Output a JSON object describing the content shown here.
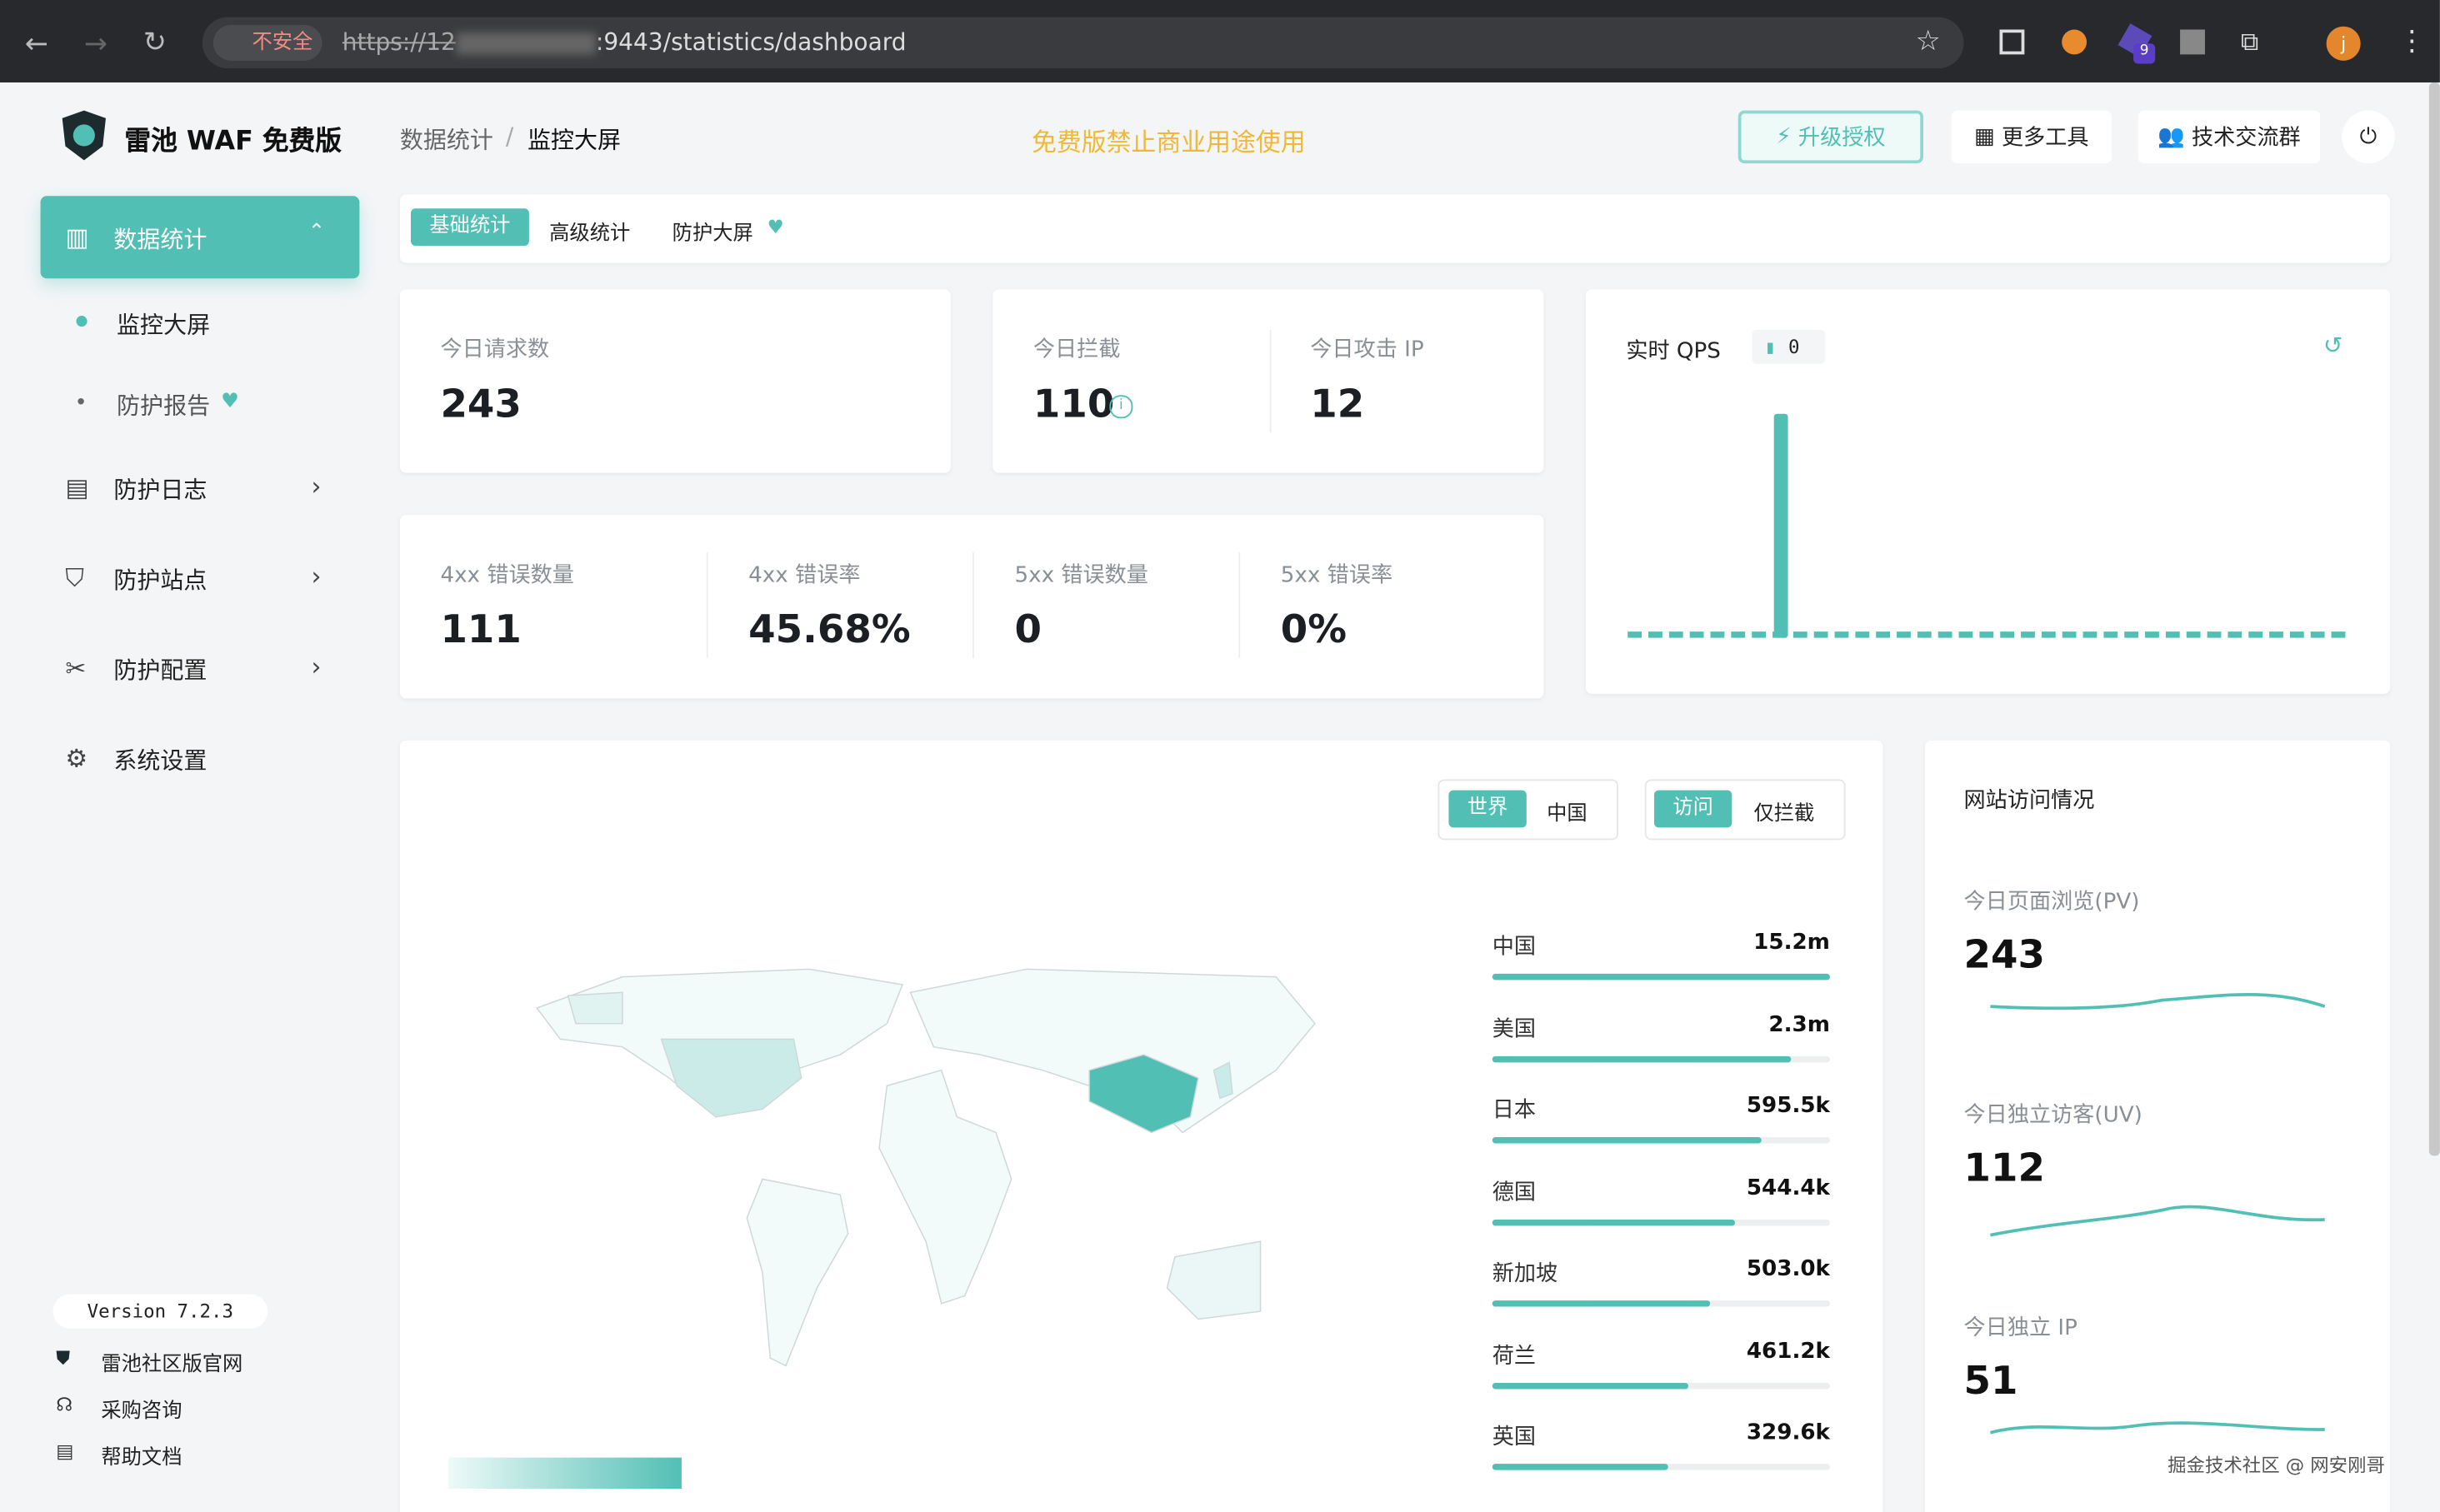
{
  "browser": {
    "security": "不安全",
    "url_start": "https://12",
    "url_end": ":9443/statistics/dashboard",
    "badge": "9",
    "profile": "j"
  },
  "header": {
    "logo": "雷池 WAF 免费版",
    "breadcrumb": [
      "数据统计",
      "监控大屏"
    ],
    "notice": "免费版禁止商业用途使用",
    "buttons": [
      "升级授权",
      "更多工具",
      "技术交流群"
    ]
  },
  "sidebar": {
    "items": [
      "数据统计",
      "防护日志",
      "防护站点",
      "防护配置",
      "系统设置"
    ],
    "sub": [
      "监控大屏",
      "防护报告"
    ],
    "version": "Version 7.2.3",
    "links": [
      "雷池社区版官网",
      "采购咨询",
      "帮助文档"
    ]
  },
  "tabs": [
    "基础统计",
    "高级统计",
    "防护大屏"
  ],
  "stats": [
    {
      "label": "今日请求数",
      "value": "243"
    },
    {
      "label": "今日拦截",
      "value": "110"
    },
    {
      "label": "今日攻击 IP",
      "value": "12"
    }
  ],
  "errors": [
    {
      "label": "4xx 错误数量",
      "value": "111"
    },
    {
      "label": "4xx 错误率",
      "value": "45.68%"
    },
    {
      "label": "5xx 错误数量",
      "value": "0"
    },
    {
      "label": "5xx 错误率",
      "value": "0%"
    }
  ],
  "qps": {
    "title": "实时 QPS",
    "value": "0"
  },
  "map": {
    "scope": [
      "世界",
      "中国"
    ],
    "mode": [
      "访问",
      "仅拦截"
    ],
    "countries": [
      {
        "name": "中国",
        "value": "15.2m"
      },
      {
        "name": "美国",
        "value": "2.3m"
      },
      {
        "name": "日本",
        "value": "595.5k"
      },
      {
        "name": "德国",
        "value": "544.4k"
      },
      {
        "name": "新加坡",
        "value": "503.0k"
      },
      {
        "name": "荷兰",
        "value": "461.2k"
      },
      {
        "name": "英国",
        "value": "329.6k"
      }
    ]
  },
  "site": {
    "title": "网站访问情况",
    "metrics": [
      {
        "label": "今日页面浏览(PV)",
        "value": "243"
      },
      {
        "label": "今日独立访客(UV)",
        "value": "112"
      },
      {
        "label": "今日独立 IP",
        "value": "51"
      }
    ]
  },
  "watermark": "掘金技术社区 @ 网安刚哥"
}
